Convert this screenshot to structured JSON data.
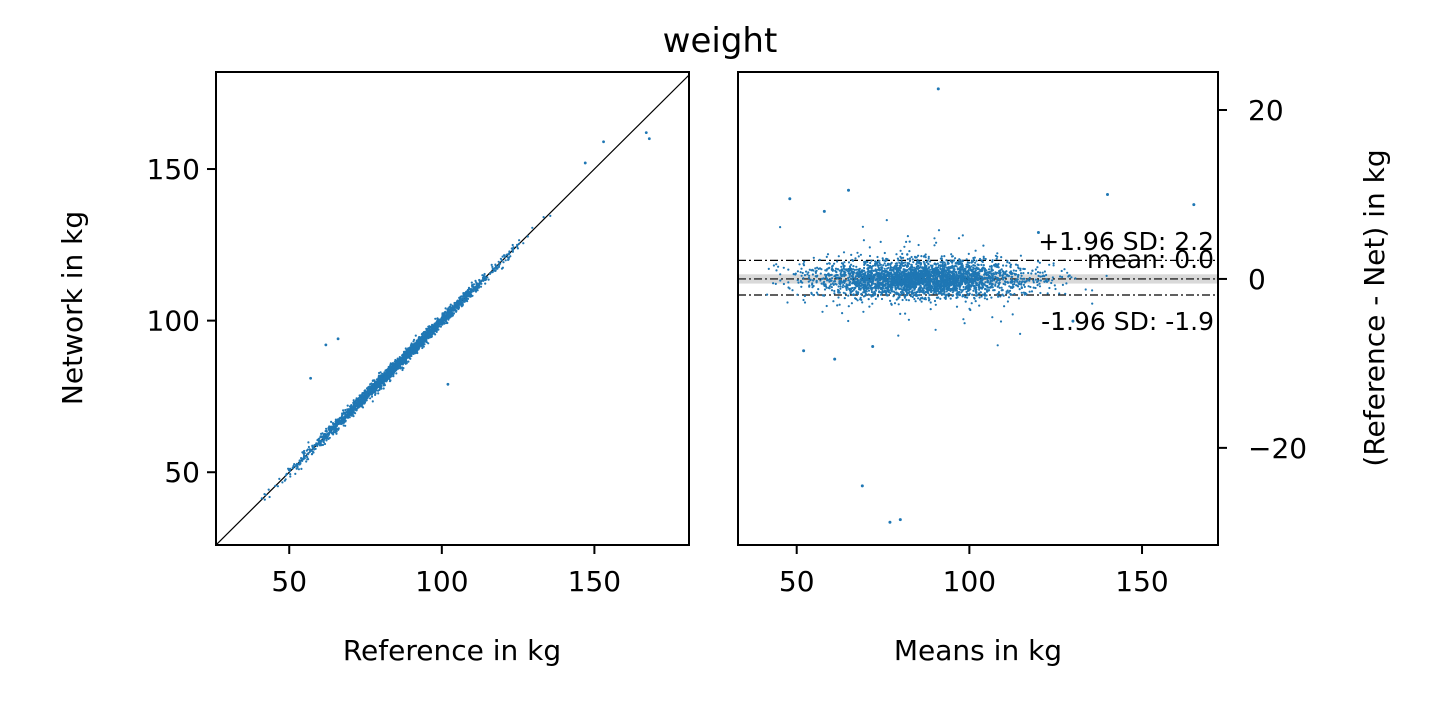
{
  "figure_title": "weight",
  "chart_data": [
    {
      "type": "scatter",
      "panel": "correlation",
      "title": "",
      "xlabel": "Reference in kg",
      "ylabel": "Network in kg",
      "xlim": [
        26,
        181
      ],
      "ylim": [
        26,
        182
      ],
      "xticks": [
        50,
        100,
        150
      ],
      "yticks": [
        50,
        100,
        150
      ],
      "grid": false,
      "point_color": "#1f77b4",
      "identity_line": true,
      "bulk_trend": {
        "x_range": [
          41,
          148
        ],
        "slope": 1.0,
        "intercept": 0.0,
        "spread_sd": 1.0
      },
      "outliers": [
        {
          "x": 62,
          "y": 92
        },
        {
          "x": 66,
          "y": 94
        },
        {
          "x": 57,
          "y": 81
        },
        {
          "x": 102,
          "y": 79
        },
        {
          "x": 167,
          "y": 162
        },
        {
          "x": 168,
          "y": 160
        },
        {
          "x": 153,
          "y": 159
        },
        {
          "x": 147,
          "y": 152
        }
      ]
    },
    {
      "type": "scatter",
      "panel": "bland-altman",
      "title": "",
      "xlabel": "Means in kg",
      "ylabel": "(Reference - Net) in kg",
      "xlim": [
        33,
        172
      ],
      "ylim": [
        -31.5,
        24.5
      ],
      "xticks": [
        50,
        100,
        150
      ],
      "yticks": [
        -20,
        0,
        20
      ],
      "y_axis_side": "right",
      "grid": false,
      "point_color": "#1f77b4",
      "bulk_range": {
        "x_min": 41,
        "x_max": 148,
        "sd": 1.05
      },
      "mean_line": 0.0,
      "upper_loa": 2.2,
      "lower_loa": -1.9,
      "annotations": [
        "+1.96 SD: 2.2",
        "mean: 0.0",
        "-1.96 SD: -1.9"
      ],
      "outliers": [
        {
          "x": 91,
          "y": 22.5
        },
        {
          "x": 69,
          "y": -24.5
        },
        {
          "x": 77,
          "y": -28.8
        },
        {
          "x": 80,
          "y": -28.5
        },
        {
          "x": 65,
          "y": 10.5
        },
        {
          "x": 48,
          "y": 9.5
        },
        {
          "x": 140,
          "y": 10.0
        },
        {
          "x": 165,
          "y": 8.8
        },
        {
          "x": 61,
          "y": -9.5
        },
        {
          "x": 72,
          "y": -8.0
        },
        {
          "x": 52,
          "y": -8.5
        },
        {
          "x": 130,
          "y": -5.0
        },
        {
          "x": 58,
          "y": 8.0
        },
        {
          "x": 120,
          "y": 5.5
        }
      ]
    }
  ]
}
